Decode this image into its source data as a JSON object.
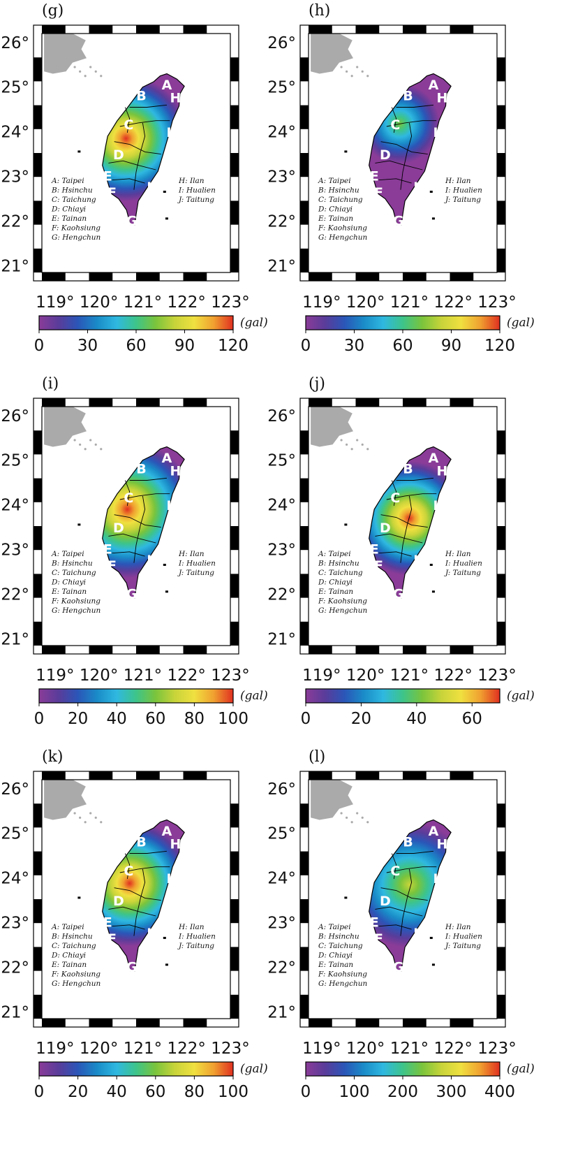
{
  "panels": [
    {
      "label": "(g)",
      "cb_ticks": [
        "0",
        "30",
        "60",
        "90",
        "120"
      ],
      "cb_max": 120,
      "hot": {
        "lon": 120.62,
        "lat": 23.85,
        "r": 0.55,
        "peak": 1.0
      }
    },
    {
      "label": "(h)",
      "cb_ticks": [
        "0",
        "30",
        "60",
        "90",
        "120"
      ],
      "cb_max": 120,
      "hot": {
        "lon": 120.78,
        "lat": 24.18,
        "r": 0.35,
        "peak": 0.55
      }
    },
    {
      "label": "(i)",
      "cb_ticks": [
        "0",
        "20",
        "40",
        "60",
        "80",
        "100"
      ],
      "cb_max": 100,
      "hot": {
        "lon": 120.65,
        "lat": 23.9,
        "r": 0.6,
        "peak": 1.0
      }
    },
    {
      "label": "(j)",
      "cb_ticks": [
        "0",
        "20",
        "40",
        "60"
      ],
      "cb_max": 70,
      "hot": {
        "lon": 121.0,
        "lat": 23.7,
        "r": 0.5,
        "peak": 1.0
      }
    },
    {
      "label": "(k)",
      "cb_ticks": [
        "0",
        "20",
        "40",
        "60",
        "80",
        "100"
      ],
      "cb_max": 100,
      "hot": {
        "lon": 120.7,
        "lat": 23.88,
        "r": 0.55,
        "peak": 1.0
      }
    },
    {
      "label": "(l)",
      "cb_ticks": [
        "0",
        "100",
        "200",
        "300",
        "400"
      ],
      "cb_max": 400,
      "hot": {
        "lon": 121.0,
        "lat": 23.85,
        "r": 0.55,
        "peak": 0.7
      }
    }
  ],
  "lat_labels": [
    "26°",
    "25°",
    "24°",
    "23°",
    "22°",
    "21°"
  ],
  "lon_labels": [
    "119°",
    "120°",
    "121°",
    "122°",
    "123°"
  ],
  "unit": "(gal)",
  "legend_left": [
    "A: Taipei",
    "B: Hsinchu",
    "C: Taichung",
    "D: Chiayi",
    "E: Tainan",
    "F: Kaohsiung",
    "G: Hengchun"
  ],
  "legend_right": [
    "H: Ilan",
    "I: Hualien",
    "J: Taitung"
  ],
  "cities": [
    {
      "letter": "A",
      "lon": 121.55,
      "lat": 25.04
    },
    {
      "letter": "B",
      "lon": 120.97,
      "lat": 24.8
    },
    {
      "letter": "C",
      "lon": 120.68,
      "lat": 24.15
    },
    {
      "letter": "D",
      "lon": 120.45,
      "lat": 23.48
    },
    {
      "letter": "E",
      "lon": 120.2,
      "lat": 23.0
    },
    {
      "letter": "F",
      "lon": 120.3,
      "lat": 22.63
    },
    {
      "letter": "G",
      "lon": 120.75,
      "lat": 22.0
    },
    {
      "letter": "H",
      "lon": 121.75,
      "lat": 24.75
    },
    {
      "letter": "I",
      "lon": 121.6,
      "lat": 23.98
    },
    {
      "letter": "J",
      "lon": 121.15,
      "lat": 22.76
    }
  ],
  "colors": {
    "ramp": [
      "#8a3c98",
      "#5a3c9a",
      "#2a56b8",
      "#1a8cc8",
      "#2fb8e0",
      "#3dc48a",
      "#7ac43c",
      "#c8d43a",
      "#f0e040",
      "#f0a030",
      "#e03020"
    ],
    "china_coast": "#aaaaaa"
  }
}
